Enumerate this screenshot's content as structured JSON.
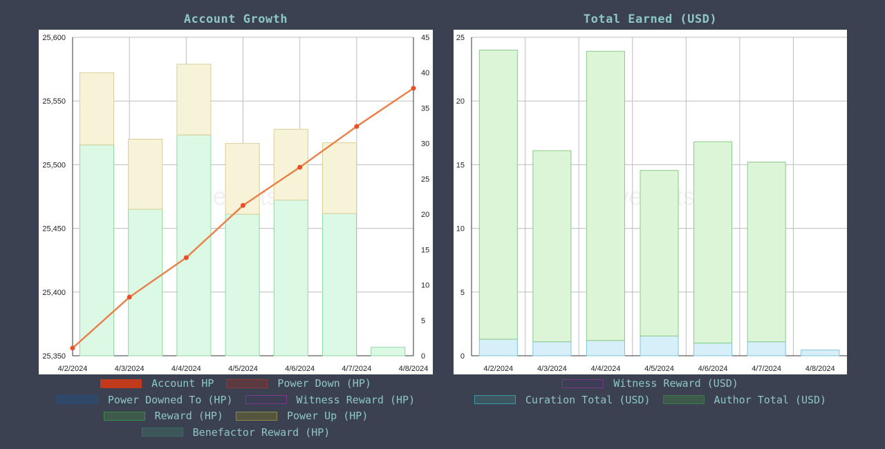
{
  "charts": {
    "left": {
      "title": "Account Growth",
      "watermark": "hivestats.io",
      "legend_rows": [
        [
          {
            "label": "Account HP",
            "color": "#c13a1c",
            "border": "#c13a1c"
          },
          {
            "label": "Power Down (HP)",
            "color": "#5a3a40",
            "border": "#8b3a3a"
          }
        ],
        [
          {
            "label": "Power Downed To (HP)",
            "color": "#2f4868",
            "border": "#2a4a7a"
          },
          {
            "label": "Witness Reward (HP)",
            "color": "#3d3d55",
            "border": "#7a3a8a"
          }
        ],
        [
          {
            "label": "Reward (HP)",
            "color": "#3d5a4a",
            "border": "#3a8a4a"
          },
          {
            "label": "Power Up (HP)",
            "color": "#55553d",
            "border": "#8a8a4a"
          }
        ],
        [
          {
            "label": "Benefactor Reward (HP)",
            "color": "#3d5558",
            "border": "#3a6a6a"
          }
        ]
      ]
    },
    "right": {
      "title": "Total Earned (USD)",
      "watermark": "hivestats.io",
      "legend_rows": [
        [
          {
            "label": "Witness Reward (USD)",
            "color": "#3d3d55",
            "border": "#7a3a8a"
          }
        ],
        [
          {
            "label": "Curation Total (USD)",
            "color": "#3d5560",
            "border": "#3a9aaa"
          },
          {
            "label": "Author Total (USD)",
            "color": "#3d5a4a",
            "border": "#3a7a4a"
          }
        ]
      ]
    }
  },
  "chart_data": [
    {
      "type": "bar",
      "title": "Account Growth",
      "categories": [
        "4/2/2024",
        "4/3/2024",
        "4/4/2024",
        "4/5/2024",
        "4/6/2024",
        "4/7/2024",
        "4/8/2024"
      ],
      "y_left": {
        "ylim": [
          25350,
          25600
        ],
        "ticks": [
          25350,
          25400,
          25450,
          25500,
          25550,
          25600
        ]
      },
      "y_right": {
        "ylim": [
          0,
          45
        ],
        "ticks": [
          0,
          5,
          10,
          15,
          20,
          25,
          30,
          35,
          40,
          45
        ]
      },
      "grid": true,
      "series": [
        {
          "name": "Reward (HP)",
          "kind": "bar",
          "axis": "right",
          "values": [
            29.8,
            20.7,
            31.2,
            20.0,
            22.0,
            20.1,
            1.2
          ],
          "color": "#dcf9e6",
          "border": "#8fd6a4"
        },
        {
          "name": "Power Up (HP)",
          "kind": "bar",
          "axis": "right",
          "values": [
            10.2,
            9.9,
            10.0,
            10.0,
            10.0,
            10.0,
            0
          ],
          "color": "#f6f3d9",
          "border": "#d8cf96"
        },
        {
          "name": "Account HP",
          "kind": "line",
          "axis": "left",
          "values": [
            25356,
            25396,
            25427,
            25468,
            25498,
            25530,
            25560
          ],
          "color": "#e8824a"
        }
      ]
    },
    {
      "type": "bar",
      "title": "Total Earned (USD)",
      "categories": [
        "4/2/2024",
        "4/3/2024",
        "4/4/2024",
        "4/5/2024",
        "4/6/2024",
        "4/7/2024",
        "4/8/2024"
      ],
      "ylim": [
        0,
        25
      ],
      "ticks": [
        0,
        5,
        10,
        15,
        20,
        25
      ],
      "grid": true,
      "series": [
        {
          "name": "Curation Total (USD)",
          "values": [
            1.3,
            1.1,
            1.2,
            1.55,
            1.0,
            1.1,
            0.45
          ],
          "color": "#d6eff8",
          "border": "#7fc3dd"
        },
        {
          "name": "Author Total (USD)",
          "values": [
            22.7,
            15.0,
            22.7,
            13.0,
            15.8,
            14.1,
            0
          ],
          "color": "#dcf5d6",
          "border": "#89c98a"
        }
      ]
    }
  ]
}
